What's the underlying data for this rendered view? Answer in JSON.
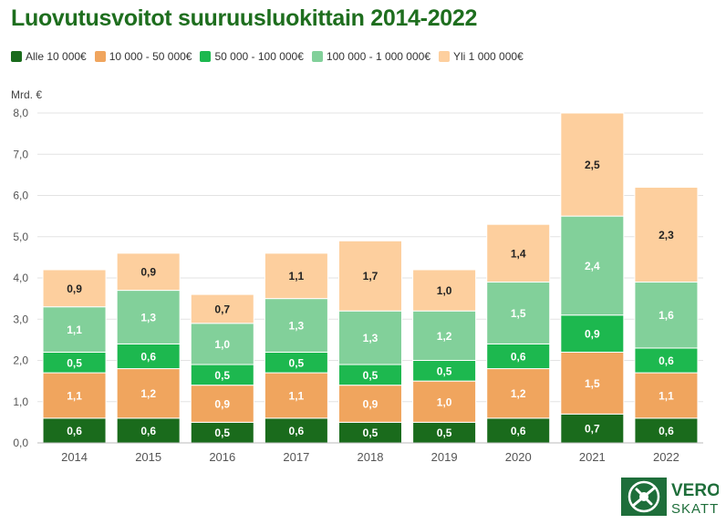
{
  "title": "Luovutusvoitot suuruusluokittain 2014-2022",
  "logo": {
    "line1": "VERO",
    "line2": "SKATT"
  },
  "chart_data": {
    "type": "bar",
    "stacked": true,
    "title": "Luovutusvoitot suuruusluokittain 2014-2022",
    "xlabel": "",
    "ylabel": "Mrd. €",
    "ylim": [
      0,
      8
    ],
    "yticks": [
      "0,0",
      "1,0",
      "2,0",
      "3,0",
      "4,0",
      "5,0",
      "6,0",
      "7,0",
      "8,0"
    ],
    "categories": [
      "2014",
      "2015",
      "2016",
      "2017",
      "2018",
      "2019",
      "2020",
      "2021",
      "2022"
    ],
    "grid": true,
    "legend_position": "top-left",
    "series": [
      {
        "name": "Alle 10 000€",
        "color": "#1a6b1c",
        "label_color": "#ffffff",
        "values": [
          0.6,
          0.6,
          0.5,
          0.6,
          0.5,
          0.5,
          0.6,
          0.7,
          0.6
        ],
        "labels": [
          "0,6",
          "0,6",
          "0,5",
          "0,6",
          "0,5",
          "0,5",
          "0,6",
          "0,7",
          "0,6"
        ]
      },
      {
        "name": "10 000 - 50 000€",
        "color": "#f0a55e",
        "label_color": "#ffffff",
        "values": [
          1.1,
          1.2,
          0.9,
          1.1,
          0.9,
          1.0,
          1.2,
          1.5,
          1.1
        ],
        "labels": [
          "1,1",
          "1,2",
          "0,9",
          "1,1",
          "0,9",
          "1,0",
          "1,2",
          "1,5",
          "1,1"
        ]
      },
      {
        "name": "50 000 - 100 000€",
        "color": "#1db84f",
        "label_color": "#ffffff",
        "values": [
          0.5,
          0.6,
          0.5,
          0.5,
          0.5,
          0.5,
          0.6,
          0.9,
          0.6
        ],
        "labels": [
          "0,5",
          "0,6",
          "0,5",
          "0,5",
          "0,5",
          "0,5",
          "0,6",
          "0,9",
          "0,6"
        ]
      },
      {
        "name": "100 000 - 1 000 000€",
        "color": "#82d09a",
        "label_color": "#ffffff",
        "values": [
          1.1,
          1.3,
          1.0,
          1.3,
          1.3,
          1.2,
          1.5,
          2.4,
          1.6
        ],
        "labels": [
          "1,1",
          "1,3",
          "1,0",
          "1,3",
          "1,3",
          "1,2",
          "1,5",
          "2,4",
          "1,6"
        ]
      },
      {
        "name": "Yli 1 000 000€",
        "color": "#fdcf9e",
        "label_color": "#222222",
        "values": [
          0.9,
          0.9,
          0.7,
          1.1,
          1.7,
          1.0,
          1.4,
          2.5,
          2.3
        ],
        "labels": [
          "0,9",
          "0,9",
          "0,7",
          "1,1",
          "1,7",
          "1,0",
          "1,4",
          "2,5",
          "2,3"
        ]
      }
    ]
  }
}
